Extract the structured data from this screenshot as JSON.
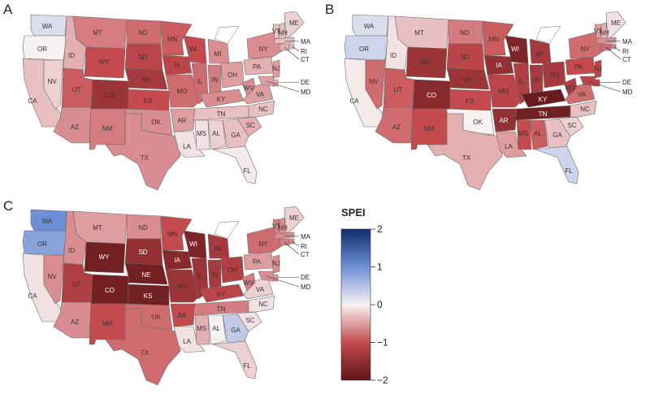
{
  "panels": [
    {
      "letter": "A",
      "states": [
        {
          "code": "WA",
          "spei": 0.2
        },
        {
          "code": "OR",
          "spei": 0.0
        },
        {
          "code": "CA",
          "spei": -0.3
        },
        {
          "code": "NV",
          "spei": -0.2
        },
        {
          "code": "ID",
          "spei": -0.4
        },
        {
          "code": "MT",
          "spei": -0.7
        },
        {
          "code": "WY",
          "spei": -1.0
        },
        {
          "code": "UT",
          "spei": -0.9
        },
        {
          "code": "AZ",
          "spei": -0.6
        },
        {
          "code": "CO",
          "spei": -1.4
        },
        {
          "code": "NM",
          "spei": -0.7
        },
        {
          "code": "ND",
          "spei": -0.8
        },
        {
          "code": "SD",
          "spei": -1.1
        },
        {
          "code": "NE",
          "spei": -1.3
        },
        {
          "code": "KS",
          "spei": -1.0
        },
        {
          "code": "OK",
          "spei": -0.6
        },
        {
          "code": "TX",
          "spei": -0.6
        },
        {
          "code": "MN",
          "spei": -0.9
        },
        {
          "code": "IA",
          "spei": -1.1
        },
        {
          "code": "MO",
          "spei": -0.8
        },
        {
          "code": "AR",
          "spei": -0.5
        },
        {
          "code": "LA",
          "spei": -0.1
        },
        {
          "code": "WI",
          "spei": -1.0
        },
        {
          "code": "IL",
          "spei": -0.8
        },
        {
          "code": "MI",
          "spei": -0.6
        },
        {
          "code": "IN",
          "spei": -0.7
        },
        {
          "code": "OH",
          "spei": -0.5
        },
        {
          "code": "KY",
          "spei": -0.6
        },
        {
          "code": "TN",
          "spei": -0.3
        },
        {
          "code": "MS",
          "spei": -0.1
        },
        {
          "code": "AL",
          "spei": -0.2
        },
        {
          "code": "GA",
          "spei": -0.3
        },
        {
          "code": "FL",
          "spei": -0.05
        },
        {
          "code": "SC",
          "spei": -0.4
        },
        {
          "code": "NC",
          "spei": -0.3
        },
        {
          "code": "VA",
          "spei": -0.5
        },
        {
          "code": "WV",
          "spei": -0.6
        },
        {
          "code": "PA",
          "spei": -0.4
        },
        {
          "code": "NY",
          "spei": -0.6
        },
        {
          "code": "VT",
          "spei": -0.3
        },
        {
          "code": "NH",
          "spei": -0.3
        },
        {
          "code": "ME",
          "spei": -0.2
        },
        {
          "code": "MA",
          "spei": -0.3
        },
        {
          "code": "RI",
          "spei": -0.3
        },
        {
          "code": "CT",
          "spei": -0.4
        },
        {
          "code": "NJ",
          "spei": -0.5
        },
        {
          "code": "DE",
          "spei": -0.4
        },
        {
          "code": "MD",
          "spei": -0.5
        }
      ]
    },
    {
      "letter": "B",
      "states": [
        {
          "code": "WA",
          "spei": 0.2
        },
        {
          "code": "OR",
          "spei": 0.3
        },
        {
          "code": "CA",
          "spei": -0.05
        },
        {
          "code": "NV",
          "spei": -0.8
        },
        {
          "code": "ID",
          "spei": -0.1
        },
        {
          "code": "MT",
          "spei": -0.3
        },
        {
          "code": "WY",
          "spei": -1.4
        },
        {
          "code": "UT",
          "spei": -0.9
        },
        {
          "code": "AZ",
          "spei": -0.8
        },
        {
          "code": "CO",
          "spei": -1.6
        },
        {
          "code": "NM",
          "spei": -1.0
        },
        {
          "code": "ND",
          "spei": -0.7
        },
        {
          "code": "SD",
          "spei": -1.1
        },
        {
          "code": "NE",
          "spei": -1.4
        },
        {
          "code": "KS",
          "spei": -1.0
        },
        {
          "code": "OK",
          "spei": 0.0
        },
        {
          "code": "TX",
          "spei": -0.4
        },
        {
          "code": "MN",
          "spei": -0.9
        },
        {
          "code": "IA",
          "spei": -1.5
        },
        {
          "code": "MO",
          "spei": -1.1
        },
        {
          "code": "AR",
          "spei": -1.5
        },
        {
          "code": "LA",
          "spei": -0.5
        },
        {
          "code": "WI",
          "spei": -1.7
        },
        {
          "code": "IL",
          "spei": -1.2
        },
        {
          "code": "MI",
          "spei": -1.3
        },
        {
          "code": "IN",
          "spei": -1.3
        },
        {
          "code": "OH",
          "spei": -1.3
        },
        {
          "code": "KY",
          "spei": -1.9
        },
        {
          "code": "TN",
          "spei": -1.8
        },
        {
          "code": "MS",
          "spei": -1.0
        },
        {
          "code": "AL",
          "spei": -0.9
        },
        {
          "code": "GA",
          "spei": -0.3
        },
        {
          "code": "FL",
          "spei": 0.3
        },
        {
          "code": "SC",
          "spei": -0.2
        },
        {
          "code": "NC",
          "spei": -0.3
        },
        {
          "code": "VA",
          "spei": -0.8
        },
        {
          "code": "WV",
          "spei": -1.2
        },
        {
          "code": "PA",
          "spei": -1.0
        },
        {
          "code": "NY",
          "spei": -0.8
        },
        {
          "code": "VT",
          "spei": -0.5
        },
        {
          "code": "NH",
          "spei": -0.4
        },
        {
          "code": "ME",
          "spei": -0.1
        },
        {
          "code": "MA",
          "spei": -0.6
        },
        {
          "code": "RI",
          "spei": -0.6
        },
        {
          "code": "CT",
          "spei": -0.8
        },
        {
          "code": "NJ",
          "spei": -1.1
        },
        {
          "code": "DE",
          "spei": -1.0
        },
        {
          "code": "MD",
          "spei": -1.1
        }
      ]
    },
    {
      "letter": "C",
      "states": [
        {
          "code": "WA",
          "spei": 1.0
        },
        {
          "code": "OR",
          "spei": 0.8
        },
        {
          "code": "CA",
          "spei": -0.1
        },
        {
          "code": "NV",
          "spei": -0.6
        },
        {
          "code": "ID",
          "spei": -0.6
        },
        {
          "code": "MT",
          "spei": -0.5
        },
        {
          "code": "WY",
          "spei": -1.8
        },
        {
          "code": "UT",
          "spei": -1.2
        },
        {
          "code": "AZ",
          "spei": -0.6
        },
        {
          "code": "CO",
          "spei": -1.8
        },
        {
          "code": "NM",
          "spei": -1.0
        },
        {
          "code": "ND",
          "spei": -0.6
        },
        {
          "code": "SD",
          "spei": -1.5
        },
        {
          "code": "NE",
          "spei": -1.8
        },
        {
          "code": "KS",
          "spei": -1.8
        },
        {
          "code": "OK",
          "spei": -0.8
        },
        {
          "code": "TX",
          "spei": -0.8
        },
        {
          "code": "MN",
          "spei": -1.0
        },
        {
          "code": "IA",
          "spei": -1.6
        },
        {
          "code": "MO",
          "spei": -1.4
        },
        {
          "code": "AR",
          "spei": -1.0
        },
        {
          "code": "LA",
          "spei": -0.1
        },
        {
          "code": "WI",
          "spei": -1.7
        },
        {
          "code": "IL",
          "spei": -1.4
        },
        {
          "code": "MI",
          "spei": -1.3
        },
        {
          "code": "IN",
          "spei": -1.3
        },
        {
          "code": "OH",
          "spei": -1.2
        },
        {
          "code": "KY",
          "spei": -1.1
        },
        {
          "code": "TN",
          "spei": -0.7
        },
        {
          "code": "MS",
          "spei": -0.4
        },
        {
          "code": "AL",
          "spei": 0.0
        },
        {
          "code": "GA",
          "spei": 0.4
        },
        {
          "code": "FL",
          "spei": -0.2
        },
        {
          "code": "SC",
          "spei": -0.1
        },
        {
          "code": "NC",
          "spei": -0.1
        },
        {
          "code": "VA",
          "spei": -0.2
        },
        {
          "code": "WV",
          "spei": -0.7
        },
        {
          "code": "PA",
          "spei": -0.5
        },
        {
          "code": "NY",
          "spei": -0.8
        },
        {
          "code": "VT",
          "spei": -0.7
        },
        {
          "code": "NH",
          "spei": -0.6
        },
        {
          "code": "ME",
          "spei": -0.2
        },
        {
          "code": "MA",
          "spei": -0.6
        },
        {
          "code": "RI",
          "spei": -0.6
        },
        {
          "code": "CT",
          "spei": -0.7
        },
        {
          "code": "NJ",
          "spei": -0.6
        },
        {
          "code": "DE",
          "spei": -0.5
        },
        {
          "code": "MD",
          "spei": -0.6
        }
      ]
    }
  ],
  "legend": {
    "title": "SPEI",
    "min": -2,
    "max": 2,
    "ticks": [
      "2",
      "1",
      "0",
      "−1",
      "−2"
    ],
    "colors": {
      "low": "#5e1518",
      "mid_low": "#c54a4e",
      "zero": "#f7f2f2",
      "mid_high": "#6d8fd6",
      "high": "#0d2f6e"
    }
  }
}
